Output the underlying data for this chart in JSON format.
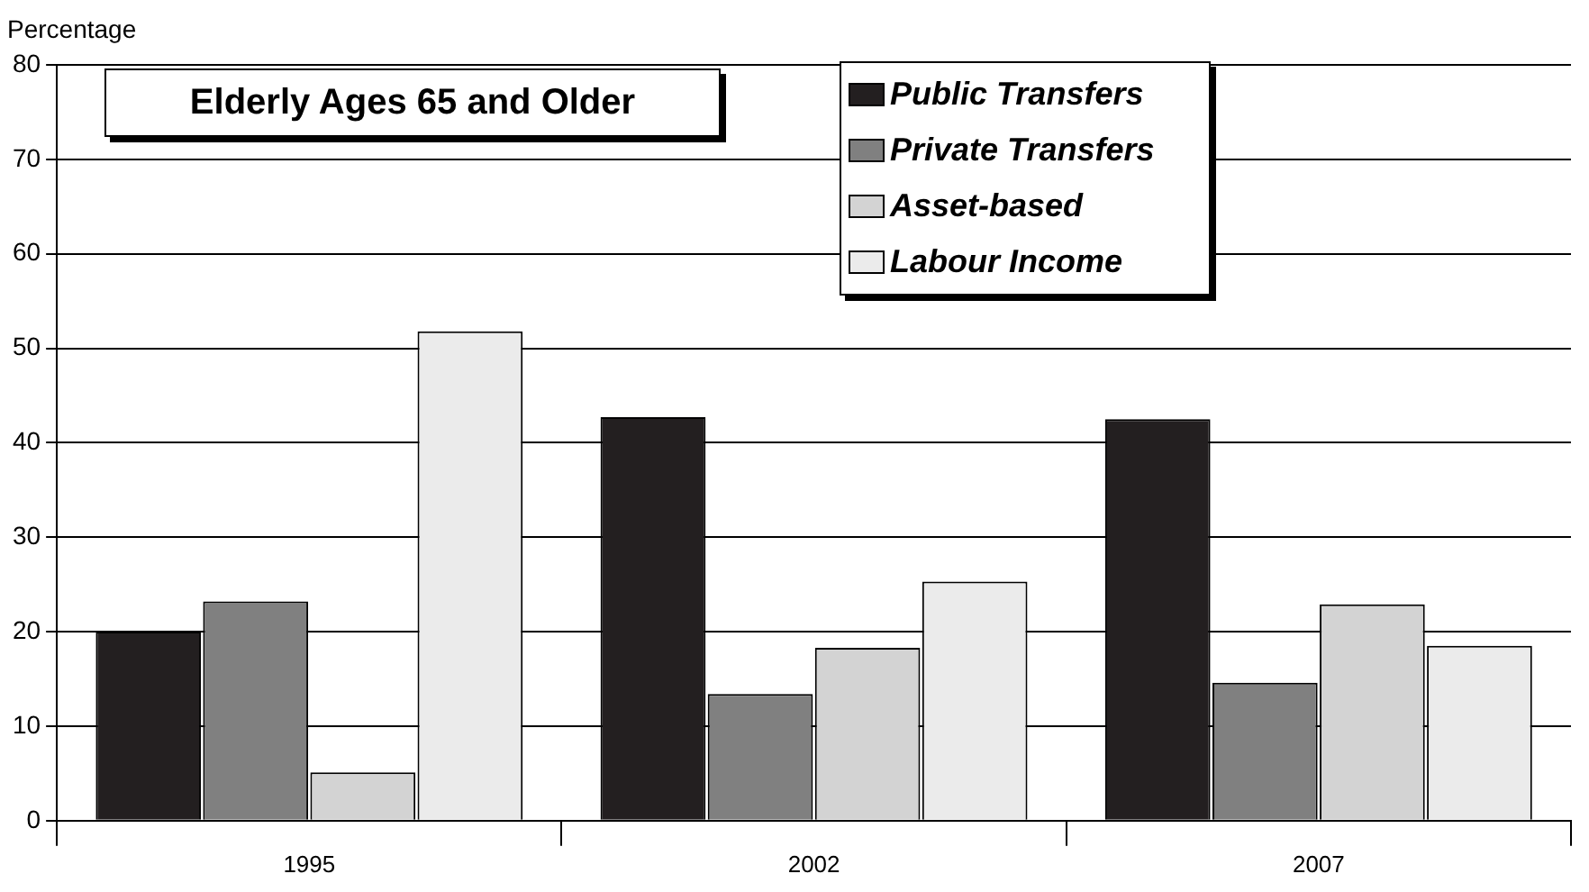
{
  "chart_data": {
    "type": "bar",
    "title": "Elderly Ages 65 and Older",
    "ylabel": "Percentage",
    "categories": [
      "1995",
      "2002",
      "2007"
    ],
    "series": [
      {
        "name": "Public Transfers",
        "color": "#231f20",
        "values": [
          20,
          42.7,
          42.5
        ]
      },
      {
        "name": "Private Transfers",
        "color": "#808080",
        "values": [
          23.2,
          13.4,
          14.6
        ]
      },
      {
        "name": "Asset-based",
        "color": "#d3d3d3",
        "values": [
          5.1,
          18.3,
          22.9
        ]
      },
      {
        "name": "Labour Income",
        "color": "#ebebeb",
        "values": [
          51.8,
          25.3,
          18.5
        ]
      }
    ],
    "ylim": [
      0,
      80
    ],
    "yticks": [
      0,
      10,
      20,
      30,
      40,
      50,
      60,
      70,
      80
    ],
    "grid": "y",
    "legend": "top right"
  }
}
